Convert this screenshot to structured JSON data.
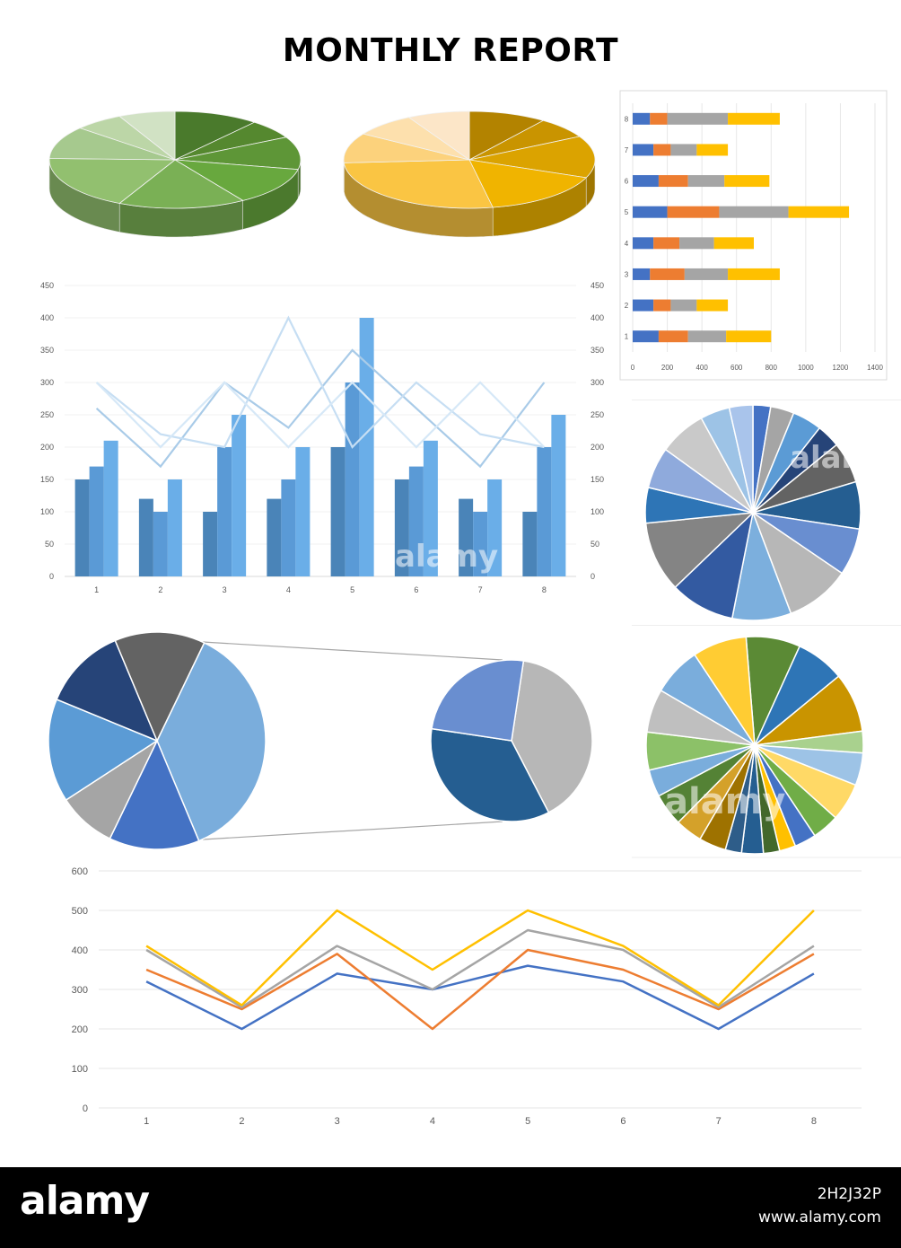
{
  "title": "MONTHLY REPORT",
  "footer": {
    "logo": "alamy",
    "image_id": "2H2J32P",
    "url": "www.alamy.com"
  },
  "watermark": "alamy",
  "colors": {
    "green_pie": [
      "#4a7a2c",
      "#55882f",
      "#5e9637",
      "#68a83e",
      "#7ab055",
      "#92c06f",
      "#a6c98e",
      "#bcd6a7",
      "#d1e2c4"
    ],
    "gold_pie": [
      "#b38300",
      "#c99400",
      "#dba300",
      "#f0b400",
      "#fac543",
      "#fcd27c",
      "#fde0ad",
      "#fce6c8"
    ],
    "bar_series": [
      "#4472c4",
      "#ed7d31",
      "#a5a5a5",
      "#ffc000"
    ],
    "combo_bars": [
      "#4a84b8",
      "#5a9ad6",
      "#6aaee8"
    ],
    "combo_lines": [
      "#a9cbe8",
      "#c6def3",
      "#d6e8f7"
    ],
    "line_series": [
      "#4472c4",
      "#ed7d31",
      "#a5a5a5",
      "#ffc000"
    ]
  },
  "chart_data": [
    {
      "type": "pie",
      "style": "3d",
      "values": [
        12,
        7,
        12,
        14,
        18,
        20,
        12,
        7,
        8
      ]
    },
    {
      "type": "pie",
      "style": "3d",
      "values": [
        10,
        7,
        14,
        16,
        27,
        10,
        8,
        8
      ]
    },
    {
      "type": "bar",
      "orientation": "horizontal",
      "stacked": true,
      "categories": [
        "1",
        "2",
        "3",
        "4",
        "5",
        "6",
        "7",
        "8"
      ],
      "series": [
        {
          "values": [
            150,
            120,
            100,
            120,
            200,
            150,
            120,
            100
          ]
        },
        {
          "values": [
            170,
            100,
            200,
            150,
            300,
            170,
            100,
            100
          ]
        },
        {
          "values": [
            220,
            150,
            250,
            200,
            400,
            210,
            150,
            350
          ]
        },
        {
          "values": [
            260,
            180,
            300,
            230,
            350,
            260,
            180,
            300
          ]
        }
      ],
      "xlim": [
        0,
        1400
      ],
      "xticks": [
        0,
        200,
        400,
        600,
        800,
        1000,
        1200,
        1400
      ],
      "grid": true
    },
    {
      "type": "bar",
      "combo": "bar+line",
      "categories": [
        "1",
        "2",
        "3",
        "4",
        "5",
        "6",
        "7",
        "8"
      ],
      "bar_series": [
        {
          "values": [
            150,
            120,
            100,
            120,
            200,
            150,
            120,
            100
          ]
        },
        {
          "values": [
            170,
            100,
            200,
            150,
            300,
            170,
            100,
            200
          ]
        },
        {
          "values": [
            210,
            150,
            250,
            200,
            400,
            210,
            150,
            250
          ]
        }
      ],
      "line_series": [
        {
          "values": [
            260,
            170,
            300,
            230,
            350,
            260,
            170,
            300
          ]
        },
        {
          "values": [
            300,
            220,
            200,
            400,
            200,
            300,
            220,
            200
          ]
        },
        {
          "values": [
            300,
            200,
            300,
            200,
            300,
            200,
            300,
            200
          ]
        }
      ],
      "ylim": [
        0,
        450
      ],
      "yticks": [
        0,
        50,
        100,
        150,
        200,
        250,
        300,
        350,
        400,
        450
      ],
      "grid": true
    },
    {
      "type": "pie",
      "slices": 16,
      "values": [
        3,
        4,
        5,
        4,
        7,
        8,
        8,
        11,
        10,
        11,
        12,
        6,
        7,
        8,
        5,
        4
      ],
      "colors": [
        "#4472c4",
        "#a5a5a5",
        "#5b9bd5",
        "#264478",
        "#636363",
        "#255e91",
        "#698ed0",
        "#b7b7b7",
        "#7cafdd",
        "#335aa1",
        "#848484",
        "#2e75b6",
        "#8faadc",
        "#c9c9c9",
        "#9dc3e6",
        "#a9c4eb"
      ]
    },
    {
      "type": "pie",
      "style": "pie-of-pie",
      "primary": {
        "values": [
          38,
          14,
          9,
          16,
          13,
          14
        ],
        "colors": [
          "#7aaddc",
          "#4472c4",
          "#a5a5a5",
          "#5b9bd5",
          "#264478",
          "#636363"
        ]
      },
      "secondary": {
        "values": [
          40,
          35,
          25
        ],
        "colors": [
          "#b7b7b7",
          "#255e91",
          "#698ed0"
        ]
      }
    },
    {
      "type": "pie",
      "slices": 20,
      "values": [
        10,
        9,
        11,
        4,
        6,
        7,
        5,
        4,
        3,
        3,
        4,
        3,
        5,
        5,
        6,
        5,
        7,
        8,
        9,
        10
      ],
      "colors": [
        "#5b8a35",
        "#2e75b6",
        "#c99400",
        "#a9d18e",
        "#9dc3e6",
        "#ffd966",
        "#70ad47",
        "#4472c4",
        "#ffc000",
        "#43682b",
        "#255e91",
        "#2e5d89",
        "#9e7200",
        "#d4a12a",
        "#548235",
        "#7aaddc",
        "#8cc168",
        "#bfbfbf",
        "#7aaddc",
        "#ffcc33"
      ]
    },
    {
      "type": "line",
      "categories": [
        "1",
        "2",
        "3",
        "4",
        "5",
        "6",
        "7",
        "8"
      ],
      "series": [
        {
          "values": [
            320,
            200,
            340,
            300,
            360,
            320,
            200,
            340
          ]
        },
        {
          "values": [
            350,
            250,
            390,
            200,
            400,
            350,
            250,
            390
          ]
        },
        {
          "values": [
            400,
            255,
            410,
            300,
            450,
            400,
            255,
            410
          ]
        },
        {
          "values": [
            410,
            260,
            500,
            350,
            500,
            410,
            260,
            500
          ]
        }
      ],
      "ylim": [
        0,
        600
      ],
      "yticks": [
        0,
        100,
        200,
        300,
        400,
        500,
        600
      ],
      "grid": true
    }
  ]
}
